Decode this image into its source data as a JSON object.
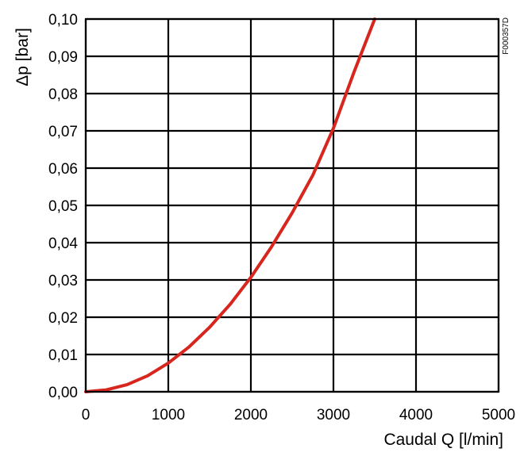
{
  "chart_data": {
    "type": "line",
    "title": "",
    "xlabel": "Caudal Q [l/min]",
    "ylabel": "Δp [bar]",
    "xlim": [
      0,
      5000
    ],
    "ylim": [
      0,
      0.1
    ],
    "x_ticks": [
      0,
      1000,
      2000,
      3000,
      4000,
      5000
    ],
    "x_tick_labels": [
      "0",
      "1000",
      "2000",
      "3000",
      "4000",
      "5000"
    ],
    "y_ticks": [
      0,
      0.01,
      0.02,
      0.03,
      0.04,
      0.05,
      0.06,
      0.07,
      0.08,
      0.09,
      0.1
    ],
    "y_tick_labels": [
      "0,00",
      "0,01",
      "0,02",
      "0,03",
      "0,04",
      "0,05",
      "0,06",
      "0,07",
      "0,08",
      "0,09",
      "0,10"
    ],
    "grid": true,
    "series": [
      {
        "color": "#d7261e",
        "x": [
          0,
          250,
          500,
          750,
          1000,
          1250,
          1500,
          1750,
          2000,
          2250,
          2500,
          2750,
          3000,
          3250,
          3500
        ],
        "y": [
          0,
          0.0005,
          0.0019,
          0.0043,
          0.0077,
          0.012,
          0.0173,
          0.0235,
          0.0307,
          0.0389,
          0.048,
          0.0581,
          0.0707,
          0.0858,
          0.1
        ]
      }
    ]
  },
  "figure_code": "F000357D"
}
